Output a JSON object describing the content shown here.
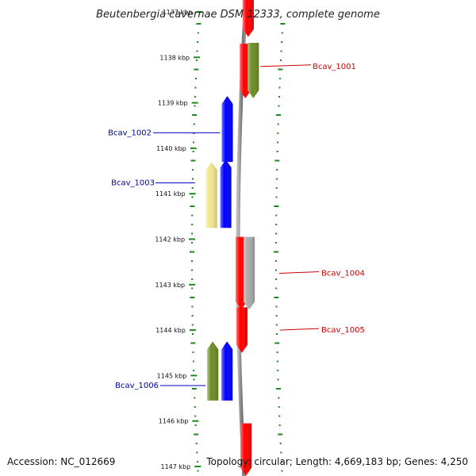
{
  "title": "Beutenbergia cavernae DSM 12333, complete genome",
  "footer": {
    "accession": "Accession: NC_012669",
    "topology": "Topology: circular; Length: 4,669,183 bp; Genes: 4,250"
  },
  "scale": {
    "unit": "kbp",
    "ticks": [
      1137,
      1138,
      1139,
      1140,
      1141,
      1142,
      1143,
      1144,
      1145,
      1146,
      1147
    ],
    "tick_labels": [
      "1137 kbp",
      "1138 kbp",
      "1139 kbp",
      "1140 kbp",
      "1141 kbp",
      "1142 kbp",
      "1143 kbp",
      "1144 kbp",
      "1145 kbp",
      "1146 kbp",
      "1147 kbp"
    ]
  },
  "colors": {
    "forward_label": "#cc0000",
    "reverse_label": "#000099",
    "leader_forward": "#cc0000",
    "leader_reverse": "#0000cc",
    "backbone": "#808080",
    "tick": "#1a8a1a"
  },
  "genes": [
    {
      "id": "g-top-red",
      "label": "",
      "strand": "+",
      "start_kbp": 1136.7,
      "end_kbp": 1137.55,
      "color": "#ff0000"
    },
    {
      "id": "g-red-1001",
      "label": "",
      "strand": "+",
      "start_kbp": 1137.7,
      "end_kbp": 1138.9,
      "color": "#ff0000"
    },
    {
      "id": "g-olive-1001",
      "label": "Bcav_1001",
      "strand": "+",
      "start_kbp": 1137.68,
      "end_kbp": 1138.9,
      "color": "#6b8e23",
      "ring": "outer"
    },
    {
      "id": "g-blue-1002",
      "label": "Bcav_1002",
      "strand": "-",
      "start_kbp": 1138.85,
      "end_kbp": 1140.3,
      "color": "#0000ff"
    },
    {
      "id": "g-yellow-1003",
      "label": "Bcav_1003",
      "strand": "-",
      "start_kbp": 1140.3,
      "end_kbp": 1141.75,
      "color": "#f0e68c",
      "ring": "outer"
    },
    {
      "id": "g-blue-1003",
      "label": "",
      "strand": "-",
      "start_kbp": 1140.25,
      "end_kbp": 1141.75,
      "color": "#0000ff"
    },
    {
      "id": "g-red-1004",
      "label": "Bcav_1004",
      "strand": "+",
      "start_kbp": 1141.95,
      "end_kbp": 1143.55,
      "color": "#ff0000"
    },
    {
      "id": "g-gray-1004",
      "label": "",
      "strand": "+",
      "start_kbp": 1141.95,
      "end_kbp": 1143.55,
      "color": "#aaaaaa",
      "ring": "outer"
    },
    {
      "id": "g-red-1005",
      "label": "Bcav_1005",
      "strand": "+",
      "start_kbp": 1143.5,
      "end_kbp": 1144.5,
      "color": "#ff0000"
    },
    {
      "id": "g-olive-1006",
      "label": "Bcav_1006",
      "strand": "-",
      "start_kbp": 1144.25,
      "end_kbp": 1145.55,
      "color": "#6b8e23",
      "ring": "outer"
    },
    {
      "id": "g-blue-1006",
      "label": "",
      "strand": "-",
      "start_kbp": 1144.25,
      "end_kbp": 1145.55,
      "color": "#0000ff"
    },
    {
      "id": "g-bottom-red",
      "label": "",
      "strand": "+",
      "start_kbp": 1146.05,
      "end_kbp": 1147.2,
      "color": "#ff0000"
    }
  ]
}
